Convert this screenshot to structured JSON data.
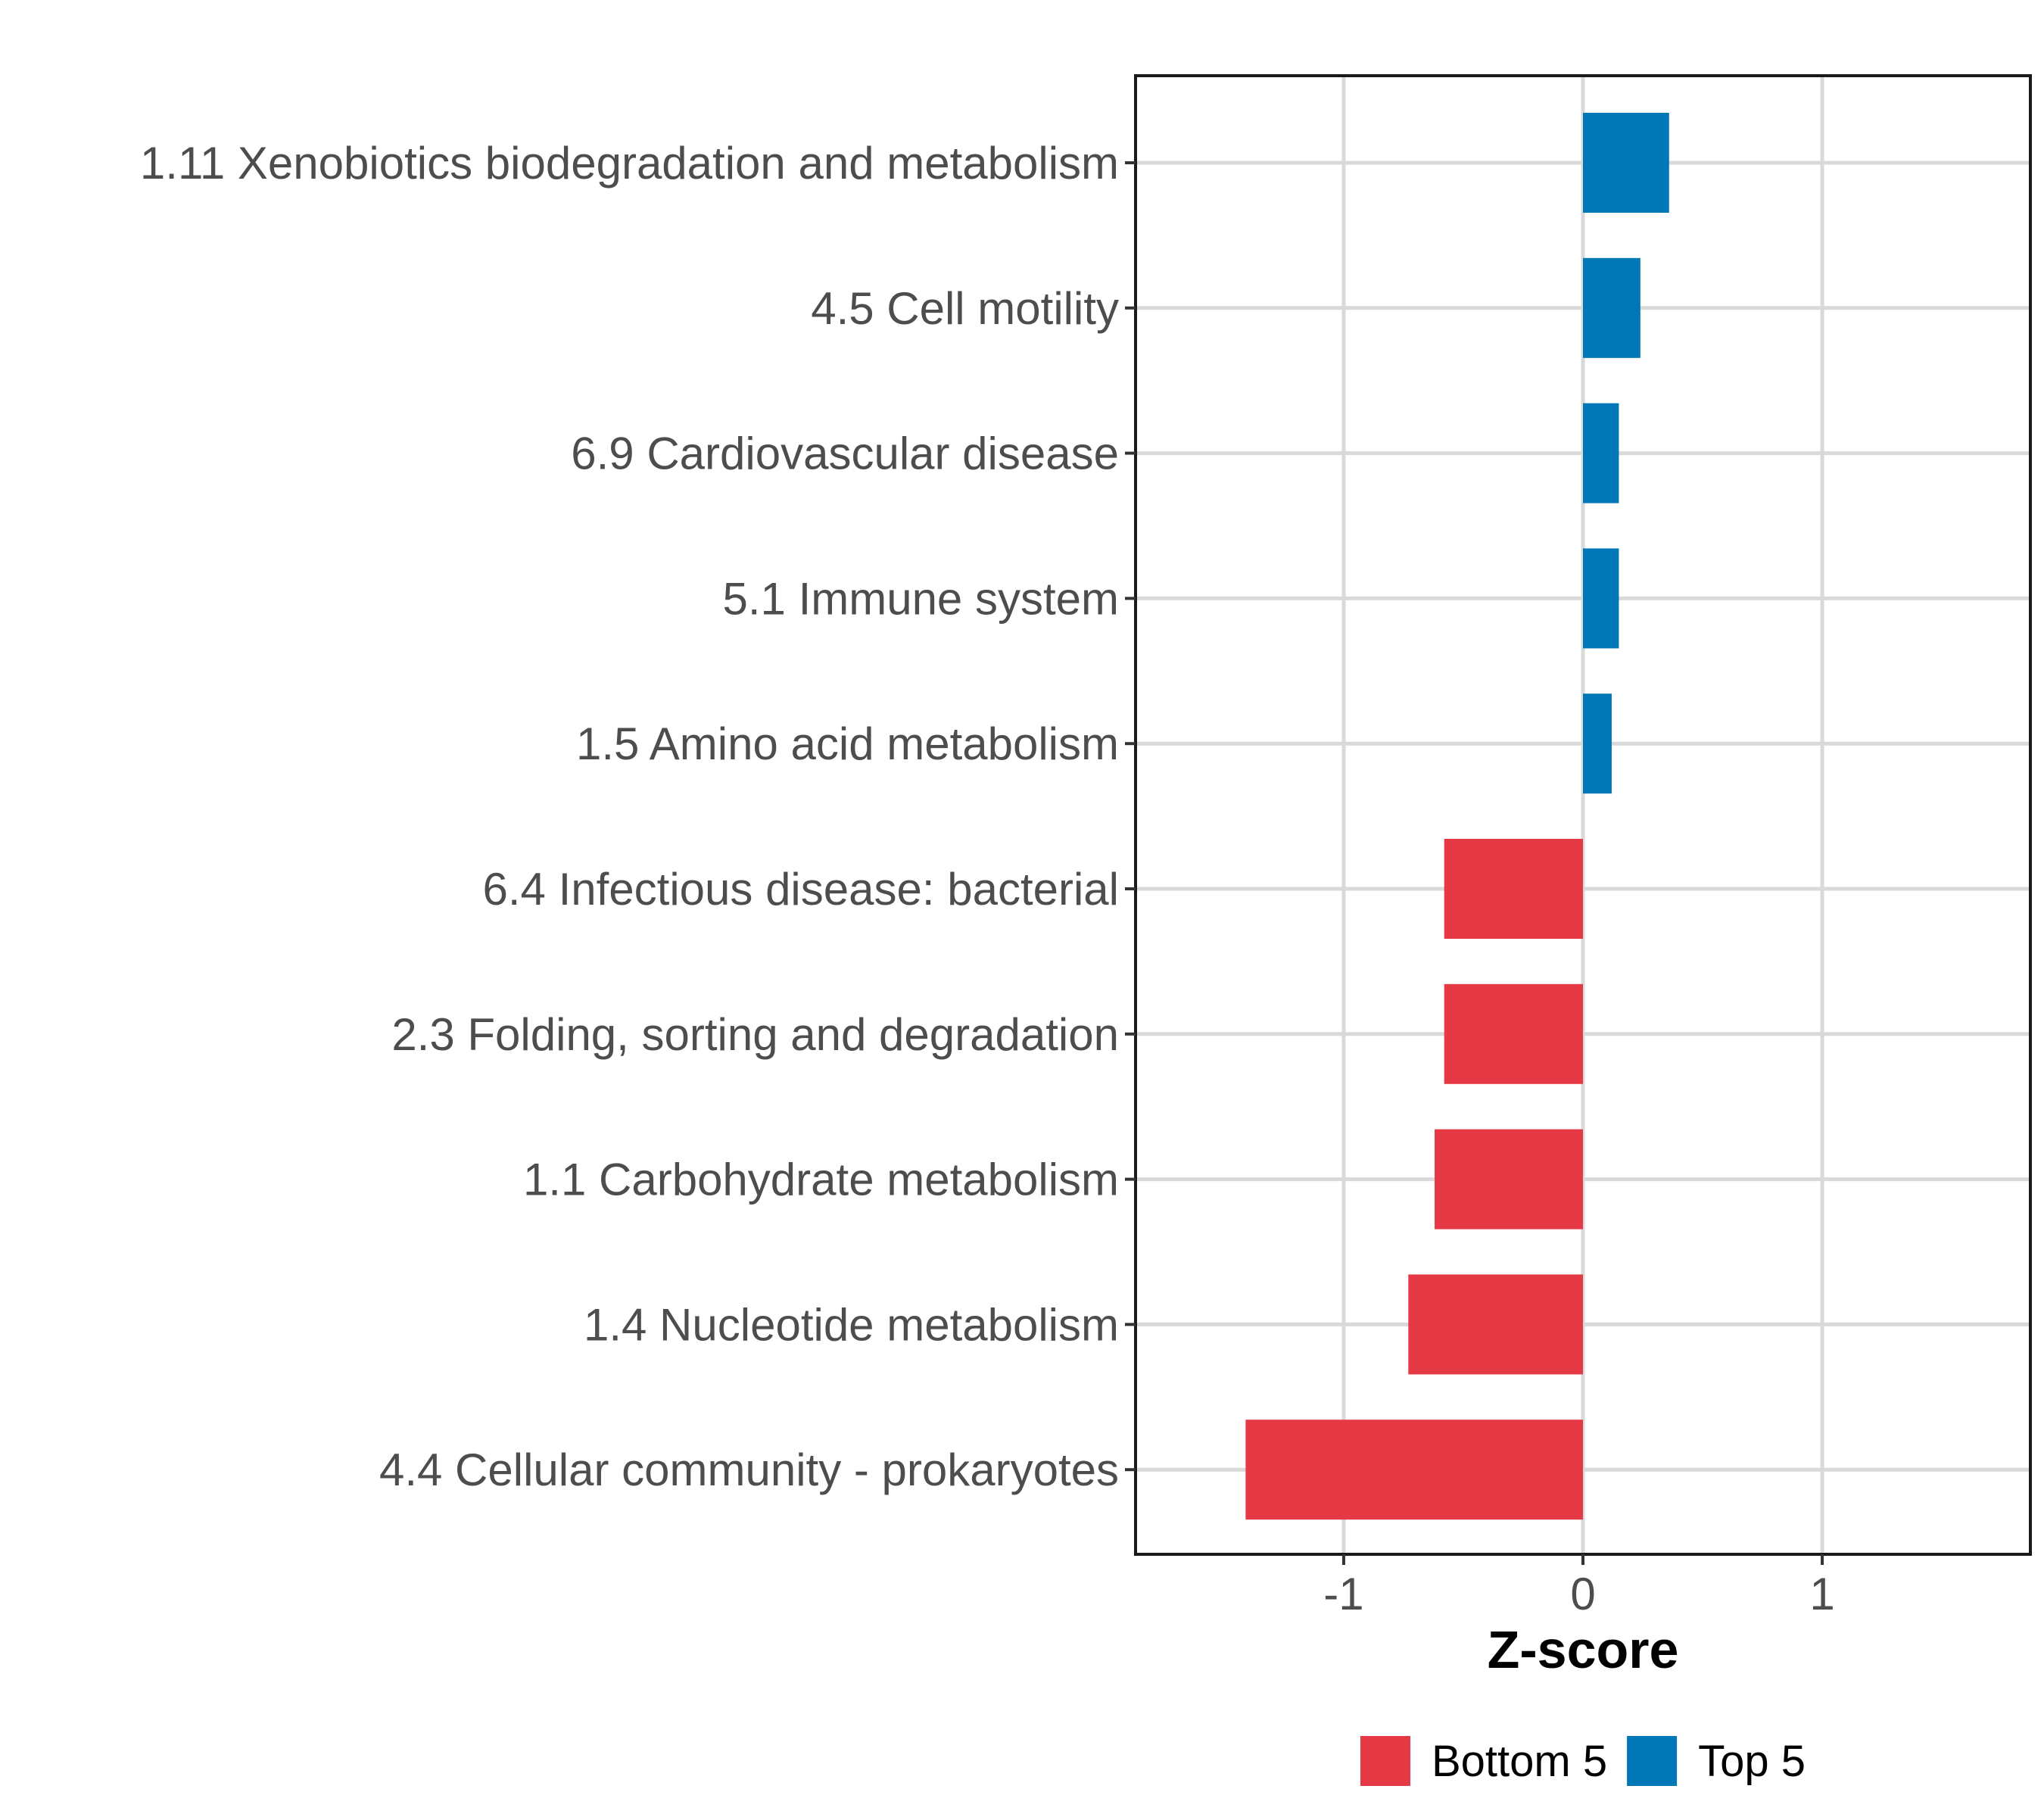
{
  "chart_data": {
    "type": "bar",
    "orientation": "horizontal",
    "title": "",
    "xlabel": "Z-score",
    "ylabel": "",
    "xlim": [
      -1.87,
      1.87
    ],
    "xticks": [
      -1,
      0,
      1
    ],
    "xtick_labels": [
      "-1",
      "0",
      "1"
    ],
    "grid": true,
    "legend_position": "bottom",
    "categories": [
      "1.11 Xenobiotics biodegradation and metabolism",
      "4.5 Cell motility",
      "6.9 Cardiovascular disease",
      "5.1 Immune system",
      "1.5 Amino acid metabolism",
      "6.4 Infectious disease: bacterial",
      "2.3 Folding, sorting and degradation",
      "1.1 Carbohydrate metabolism",
      "1.4 Nucleotide metabolism",
      "4.4 Cellular community - prokaryotes"
    ],
    "values": [
      0.36,
      0.24,
      0.15,
      0.15,
      0.12,
      -0.58,
      -0.58,
      -0.62,
      -0.73,
      -1.41
    ],
    "groups": [
      "Top 5",
      "Top 5",
      "Top 5",
      "Top 5",
      "Top 5",
      "Bottom 5",
      "Bottom 5",
      "Bottom 5",
      "Bottom 5",
      "Bottom 5"
    ],
    "legend": [
      {
        "name": "Bottom 5",
        "color": "#e63946"
      },
      {
        "name": "Top 5",
        "color": "#0077b6"
      }
    ]
  }
}
